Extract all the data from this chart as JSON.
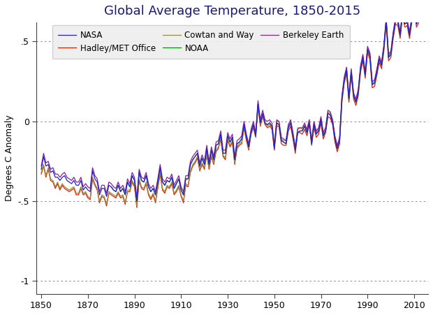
{
  "title": "Global Average Temperature, 1850-2015",
  "ylabel": "Degrees C Anomaly",
  "xlim": [
    1848,
    2016
  ],
  "ylim": [
    -1.08,
    0.62
  ],
  "yticks": [
    -1,
    -0.5,
    0,
    0.5
  ],
  "ytick_labels": [
    "-1",
    "-.5",
    "0",
    ".5"
  ],
  "xticks": [
    1850,
    1870,
    1890,
    1910,
    1930,
    1950,
    1970,
    1990,
    2010
  ],
  "series": {
    "NASA": {
      "color": "#2222cc",
      "linewidth": 0.9,
      "zorder": 4
    },
    "Hadley/MET Office": {
      "color": "#dd2200",
      "linewidth": 0.9,
      "zorder": 3
    },
    "Cowtan and Way": {
      "color": "#9b8b40",
      "linewidth": 0.9,
      "zorder": 3
    },
    "NOAA": {
      "color": "#118811",
      "linewidth": 0.9,
      "zorder": 3
    },
    "Berkeley Earth": {
      "color": "#882299",
      "linewidth": 0.9,
      "zorder": 3
    }
  },
  "legend_order": [
    "NASA",
    "Hadley/MET Office",
    "Cowtan and Way",
    "NOAA",
    "Berkeley Earth"
  ],
  "background_color": "#ffffff",
  "grid_color": "#777777",
  "title_color": "#1a1a6e",
  "title_fontsize": 13,
  "title_fontweight": "normal"
}
